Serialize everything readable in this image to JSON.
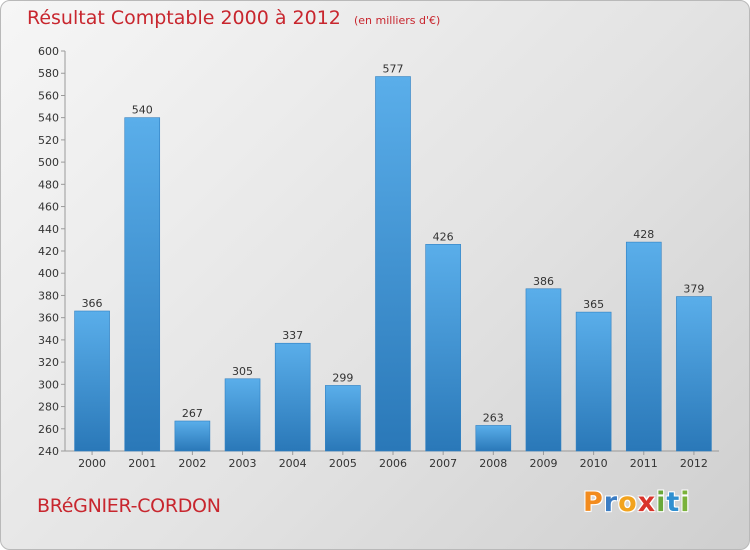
{
  "header": {
    "title": "Résultat Comptable 2000 à 2012",
    "unit": "(en milliers d'€)"
  },
  "footer": {
    "commune": "BRéGNIER-CORDON",
    "logo": {
      "letters": [
        "P",
        "r",
        "o",
        "x",
        "i",
        "t",
        "i"
      ],
      "colors": [
        "#f28b1e",
        "#3b7dc4",
        "#f2a31e",
        "#d9342b",
        "#6aa83a",
        "#2f8fd0",
        "#7ab23a"
      ]
    }
  },
  "colors": {
    "bar_light": "#5aaeea",
    "bar_dark": "#2a78b8",
    "accent": "#c8262e"
  },
  "chart_data": {
    "type": "bar",
    "title": "Résultat Comptable 2000 à 2012",
    "ylabel": "(en milliers d'€)",
    "xlabel": "",
    "categories": [
      "2000",
      "2001",
      "2002",
      "2003",
      "2004",
      "2005",
      "2006",
      "2007",
      "2008",
      "2009",
      "2010",
      "2011",
      "2012"
    ],
    "values": [
      366,
      540,
      267,
      305,
      337,
      299,
      577,
      426,
      263,
      386,
      365,
      428,
      379
    ],
    "ylim": [
      240,
      600
    ],
    "ytick_step": 20,
    "grid": false,
    "legend": "none"
  }
}
